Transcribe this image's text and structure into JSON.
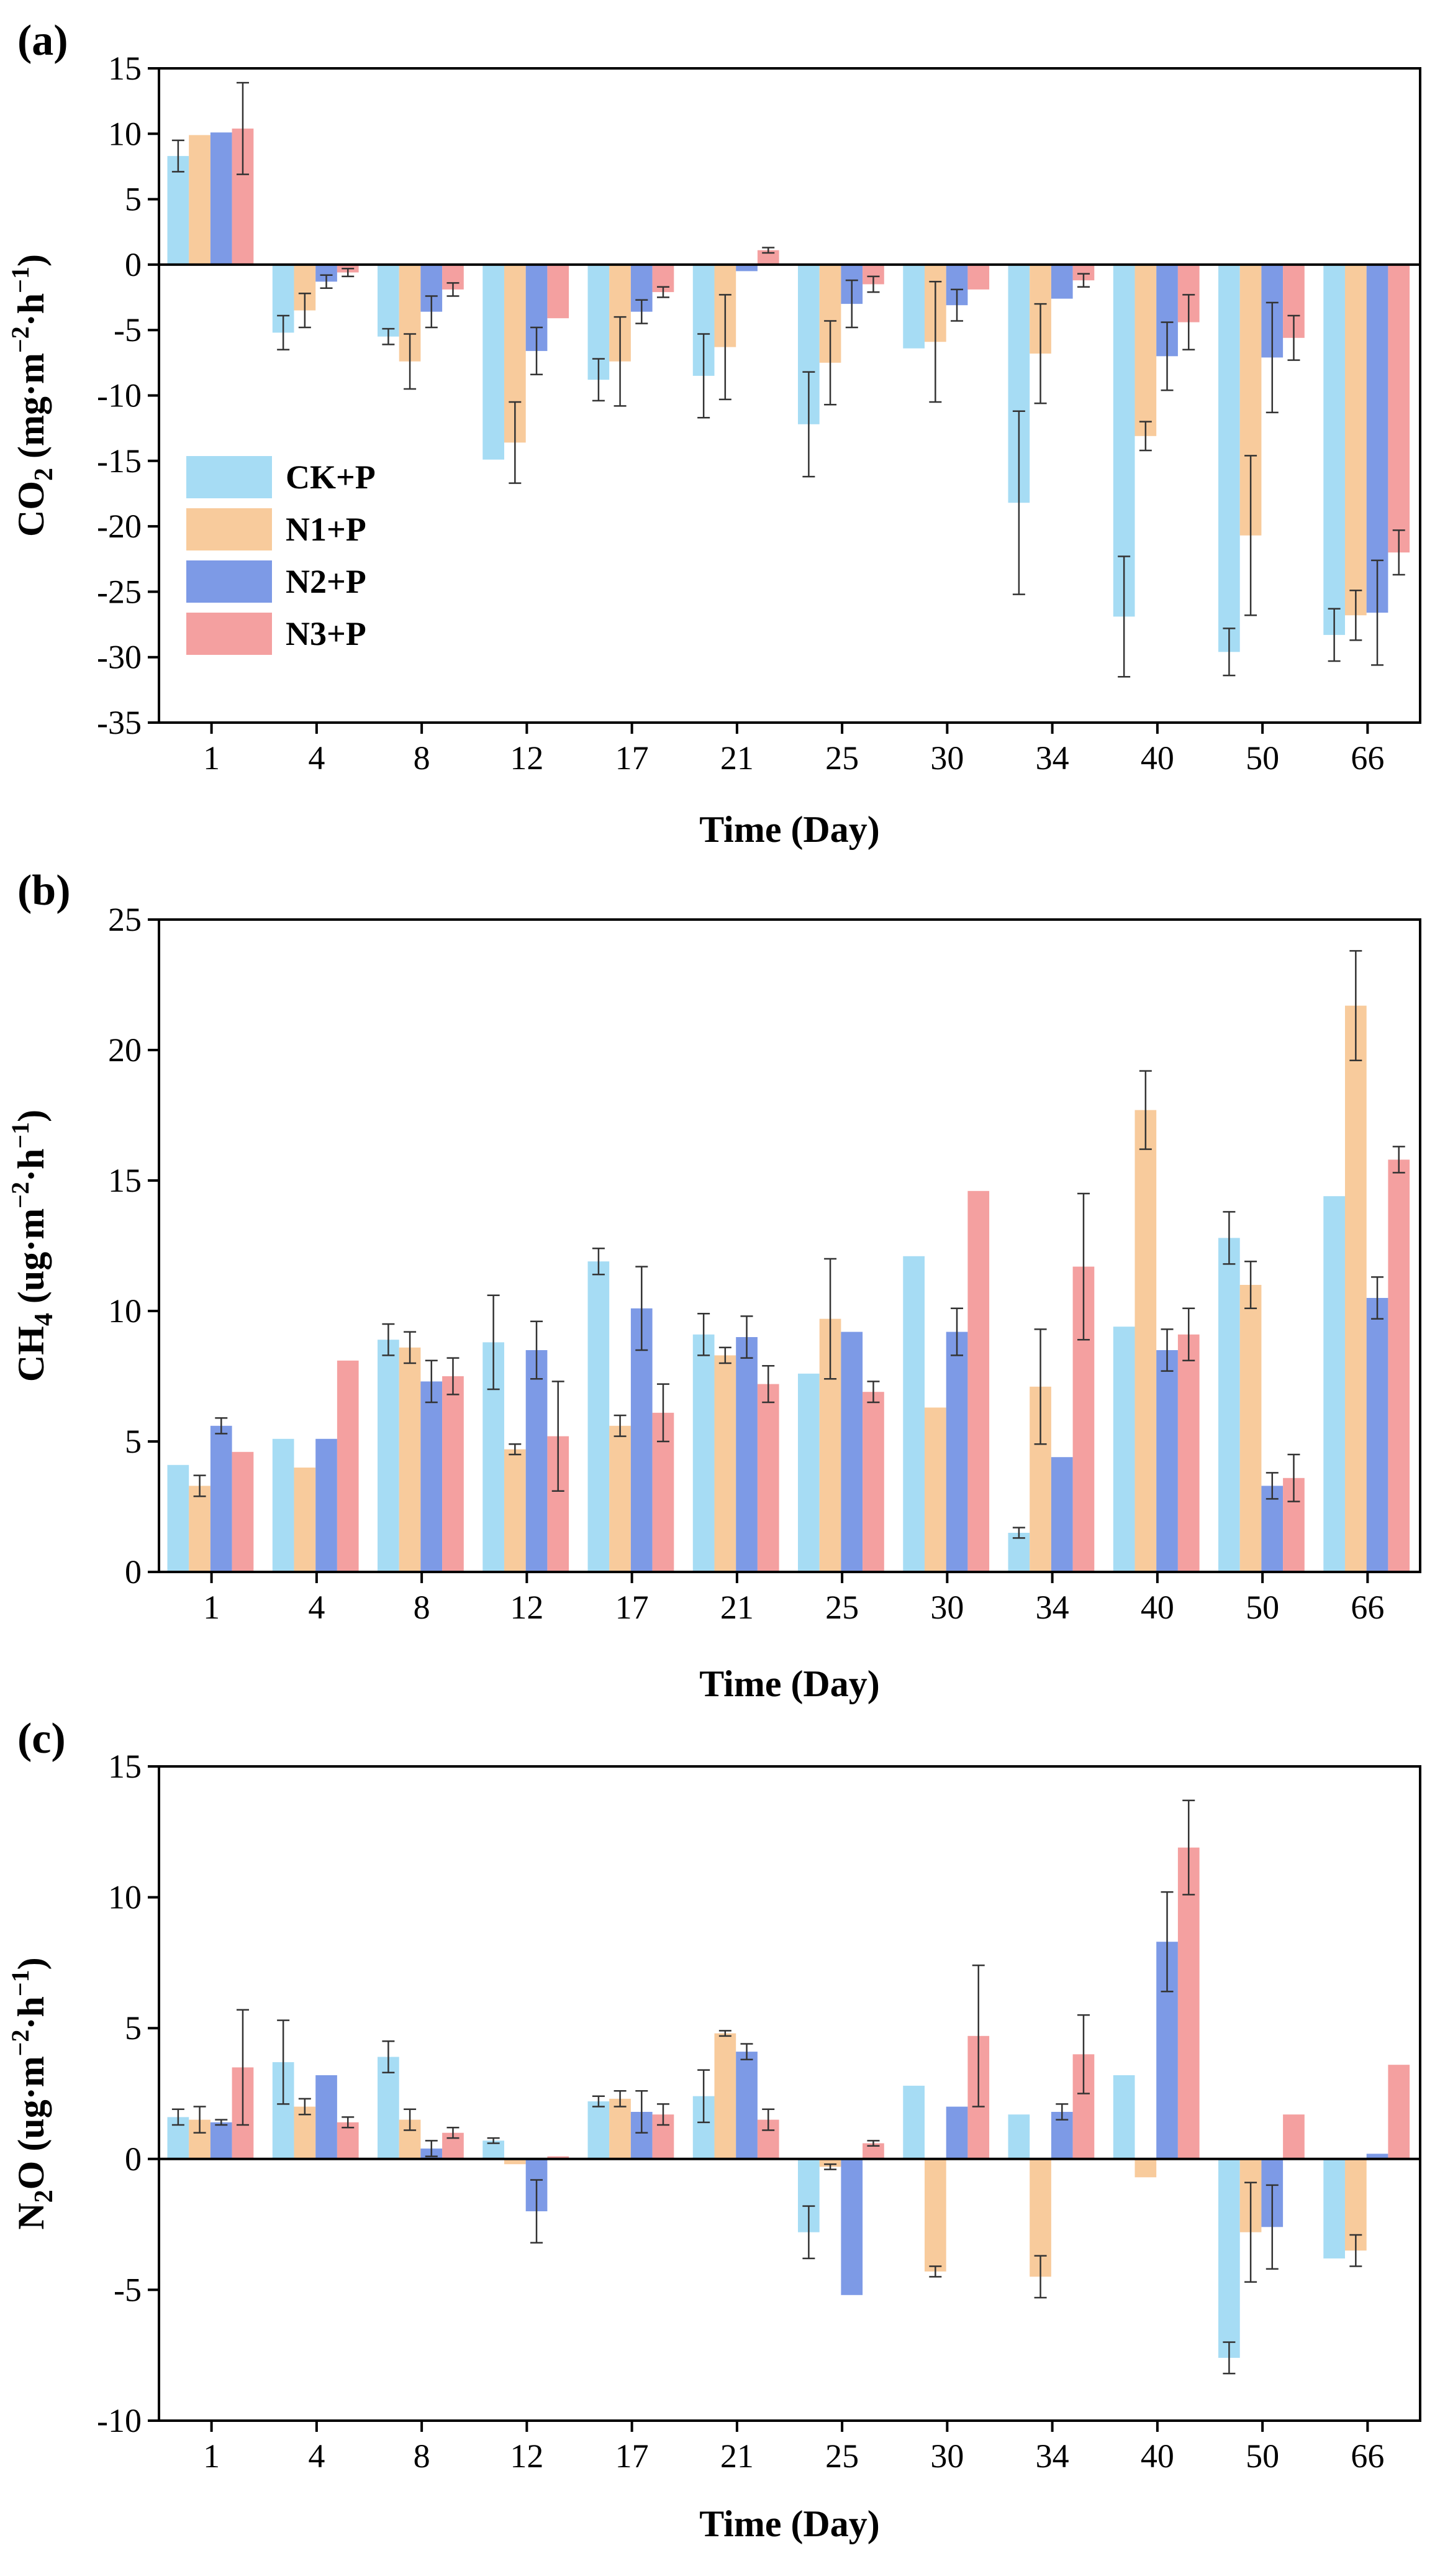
{
  "chart_data": [
    {
      "type": "bar",
      "panel_label": "(a)",
      "ylabel_main": "CO",
      "ylabel_sub": "2",
      "ylabel_unit": " (mg·m",
      "ylabel_exp": "−2",
      "ylabel_mid": "·h",
      "ylabel_exp2": "−1",
      "ylabel_end": ")",
      "xlabel": "Time (Day)",
      "ylim": [
        -35,
        15
      ],
      "yticks": [
        -35,
        -30,
        -25,
        -20,
        -15,
        -10,
        -5,
        0,
        5,
        10,
        15
      ],
      "categories": [
        "1",
        "4",
        "8",
        "12",
        "17",
        "21",
        "25",
        "30",
        "34",
        "40",
        "50",
        "66"
      ],
      "legend_position": "lower-left",
      "series": [
        {
          "name": "CK+P",
          "values": [
            8.3,
            -5.2,
            -5.5,
            -14.9,
            -8.8,
            -8.5,
            -12.2,
            -6.4,
            -18.2,
            -26.9,
            -29.6,
            -28.3
          ],
          "errors": [
            1.2,
            1.3,
            0.6,
            0,
            1.6,
            3.2,
            4.0,
            0,
            7.0,
            4.6,
            1.8,
            2.0
          ]
        },
        {
          "name": "N1+P",
          "values": [
            9.9,
            -3.5,
            -7.4,
            -13.6,
            -7.4,
            -6.3,
            -7.5,
            -5.9,
            -6.8,
            -13.1,
            -20.7,
            -26.8
          ],
          "errors": [
            0,
            1.3,
            2.1,
            3.1,
            3.4,
            4.0,
            3.2,
            4.6,
            3.8,
            1.1,
            6.1,
            1.9
          ]
        },
        {
          "name": "N2+P",
          "values": [
            10.1,
            -1.3,
            -3.6,
            -6.6,
            -3.6,
            -0.5,
            -3.0,
            -3.1,
            -2.6,
            -7.0,
            -7.1,
            -26.6
          ],
          "errors": [
            0,
            0.5,
            1.2,
            1.8,
            0.9,
            0,
            1.8,
            1.2,
            0,
            2.6,
            4.2,
            4.0
          ]
        },
        {
          "name": "N3+P",
          "values": [
            10.4,
            -0.6,
            -1.9,
            -4.1,
            -2.1,
            1.1,
            -1.5,
            -1.9,
            -1.2,
            -4.4,
            -5.6,
            -22.0
          ],
          "errors": [
            3.5,
            0.3,
            0.5,
            0,
            0.4,
            0.2,
            0.6,
            0,
            0.5,
            2.1,
            1.7,
            1.7
          ]
        }
      ]
    },
    {
      "type": "bar",
      "panel_label": "(b)",
      "ylabel_main": "CH",
      "ylabel_sub": "4",
      "ylabel_unit": " (ug·m",
      "ylabel_exp": "−2",
      "ylabel_mid": "·h",
      "ylabel_exp2": "−1",
      "ylabel_end": ")",
      "xlabel": "Time (Day)",
      "ylim": [
        0,
        25
      ],
      "yticks": [
        0,
        5,
        10,
        15,
        20,
        25
      ],
      "categories": [
        "1",
        "4",
        "8",
        "12",
        "17",
        "21",
        "25",
        "30",
        "34",
        "40",
        "50",
        "66"
      ],
      "series": [
        {
          "name": "CK+P",
          "values": [
            4.1,
            5.1,
            8.9,
            8.8,
            11.9,
            9.1,
            7.6,
            12.1,
            1.5,
            9.4,
            12.8,
            14.4
          ],
          "errors": [
            0,
            0,
            0.6,
            1.8,
            0.5,
            0.8,
            0,
            0,
            0.2,
            0,
            1.0,
            0
          ]
        },
        {
          "name": "N1+P",
          "values": [
            3.3,
            4.0,
            8.6,
            4.7,
            5.6,
            8.3,
            9.7,
            6.3,
            7.1,
            17.7,
            11.0,
            21.7
          ],
          "errors": [
            0.4,
            0,
            0.6,
            0.2,
            0.4,
            0.3,
            2.3,
            0,
            2.2,
            1.5,
            0.9,
            2.1
          ]
        },
        {
          "name": "N2+P",
          "values": [
            5.6,
            5.1,
            7.3,
            8.5,
            10.1,
            9.0,
            9.2,
            9.2,
            4.4,
            8.5,
            3.3,
            10.5
          ],
          "errors": [
            0.3,
            0,
            0.8,
            1.1,
            1.6,
            0.8,
            0,
            0.9,
            0,
            0.8,
            0.5,
            0.8
          ]
        },
        {
          "name": "N3+P",
          "values": [
            4.6,
            8.1,
            7.5,
            5.2,
            6.1,
            7.2,
            6.9,
            14.6,
            11.7,
            9.1,
            3.6,
            15.8
          ],
          "errors": [
            0,
            0,
            0.7,
            2.1,
            1.1,
            0.7,
            0.4,
            0,
            2.8,
            1.0,
            0.9,
            0.5
          ]
        }
      ]
    },
    {
      "type": "bar",
      "panel_label": "(c)",
      "ylabel_main": "N",
      "ylabel_sub": "2",
      "ylabel_unit": "O (ug·m",
      "ylabel_exp": "−2",
      "ylabel_mid": "·h",
      "ylabel_exp2": "−1",
      "ylabel_end": ")",
      "xlabel": "Time (Day)",
      "ylim": [
        -10,
        15
      ],
      "yticks": [
        -10,
        -5,
        0,
        5,
        10,
        15
      ],
      "categories": [
        "1",
        "4",
        "8",
        "12",
        "17",
        "21",
        "25",
        "30",
        "34",
        "40",
        "50",
        "66"
      ],
      "series": [
        {
          "name": "CK+P",
          "values": [
            1.6,
            3.7,
            3.9,
            0.7,
            2.2,
            2.4,
            -2.8,
            2.8,
            1.7,
            3.2,
            -7.6,
            -3.8
          ],
          "errors": [
            0.3,
            1.6,
            0.6,
            0.1,
            0.2,
            1.0,
            1.0,
            0,
            0,
            0,
            0.6,
            0
          ]
        },
        {
          "name": "N1+P",
          "values": [
            1.5,
            2.0,
            1.5,
            -0.2,
            2.3,
            4.8,
            -0.3,
            -4.3,
            -4.5,
            -0.7,
            -2.8,
            -3.5
          ],
          "errors": [
            0.5,
            0.3,
            0.4,
            0,
            0.3,
            0.1,
            0.1,
            0.2,
            0.8,
            0,
            1.9,
            0.6
          ]
        },
        {
          "name": "N2+P",
          "values": [
            1.4,
            3.2,
            0.4,
            -2.0,
            1.8,
            4.1,
            -5.2,
            2.0,
            1.8,
            8.3,
            -2.6,
            0.2
          ],
          "errors": [
            0.1,
            0,
            0.3,
            1.2,
            0.8,
            0.3,
            0,
            0,
            0.3,
            1.9,
            1.6,
            0
          ]
        },
        {
          "name": "N3+P",
          "values": [
            3.5,
            1.4,
            1.0,
            0.1,
            1.7,
            1.5,
            0.6,
            4.7,
            4.0,
            11.9,
            1.7,
            3.6
          ],
          "errors": [
            2.2,
            0.2,
            0.2,
            0,
            0.4,
            0.4,
            0.1,
            2.7,
            1.5,
            1.8,
            0,
            0
          ]
        }
      ]
    }
  ],
  "colors": {
    "CK+P": "#a6dcf4",
    "N1+P": "#f8cb9c",
    "N2+P": "#7d9ae6",
    "N3+P": "#f4a0a0"
  }
}
